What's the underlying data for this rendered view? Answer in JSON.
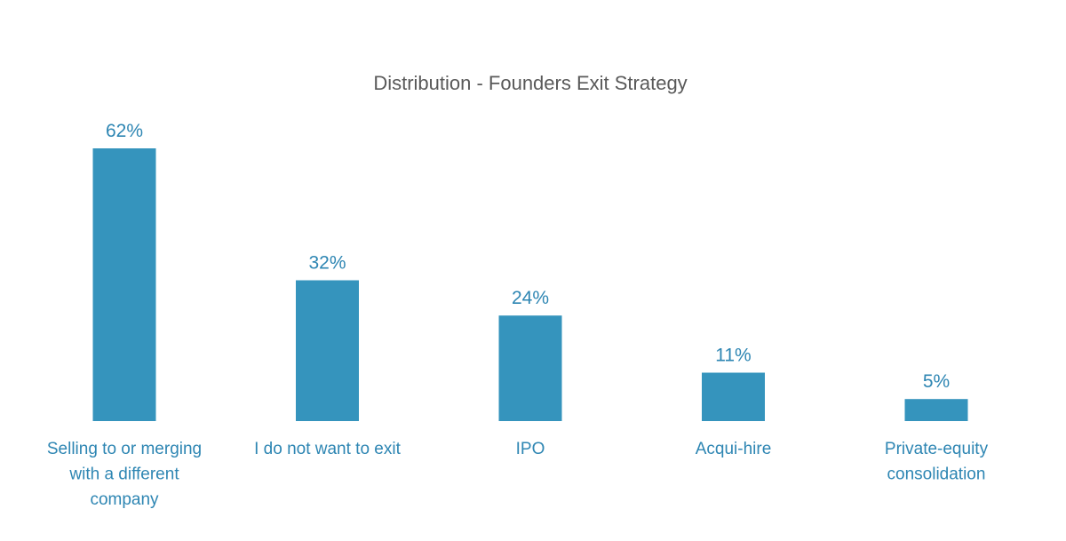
{
  "chart_data": {
    "type": "bar",
    "title": "Distribution - Founders  Exit Strategy",
    "categories": [
      "Selling to or merging with a different company",
      "I do not want to exit",
      "IPO",
      "Acqui-hire",
      "Private-equity consolidation"
    ],
    "category_lines": [
      [
        "Selling to or merging",
        "with a different",
        "company"
      ],
      [
        "I do not want to exit"
      ],
      [
        "IPO"
      ],
      [
        "Acqui-hire"
      ],
      [
        "Private-equity",
        "consolidation"
      ]
    ],
    "values": [
      62,
      32,
      24,
      11,
      5
    ],
    "data_labels": [
      "62%",
      "32%",
      "24%",
      "11%",
      "5%"
    ],
    "unit": "%",
    "xlabel": "",
    "ylabel": "",
    "ylim": [
      0,
      62
    ],
    "grid": false,
    "legend": "none",
    "colors": {
      "bar": "#3594BD",
      "label": "#2E86B3",
      "title": "#595959"
    }
  }
}
